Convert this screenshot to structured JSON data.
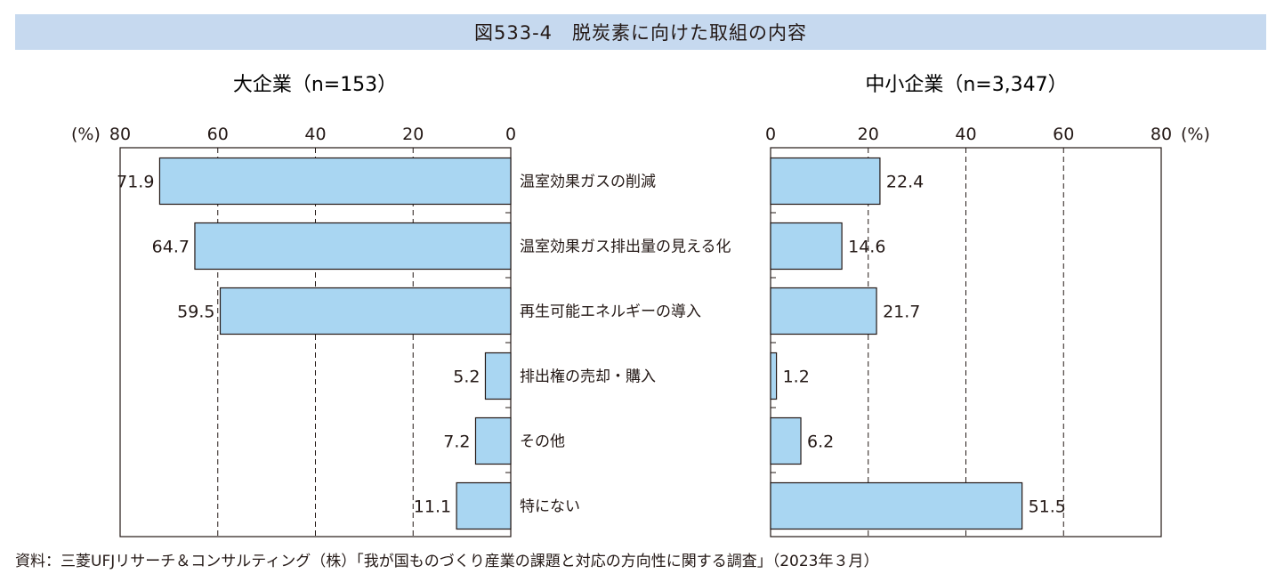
{
  "figure": {
    "title": "図533-4　脱炭素に向けた取組の内容",
    "source": "資料：三菱UFJリサーチ＆コンサルティング（株）「我が国ものづくり産業の課題と対応の方向性に関する調査」（2023年３月）",
    "bar_color": "#a9d6f2"
  },
  "chart_data": [
    {
      "type": "bar",
      "orientation": "horizontal",
      "direction": "right-to-left",
      "title": "大企業（n=153）",
      "categories": [
        "温室効果ガスの削減",
        "温室効果ガス排出量の見える化",
        "再生可能エネルギーの導入",
        "排出権の売却・購入",
        "その他",
        "特にない"
      ],
      "values": [
        71.9,
        64.7,
        59.5,
        5.2,
        7.2,
        11.1
      ],
      "value_labels": [
        "71.9",
        "64.7",
        "59.5",
        "5.2",
        "7.2",
        "11.1"
      ],
      "xlim": [
        0,
        80
      ],
      "ticks": [
        80,
        60,
        40,
        20,
        0
      ],
      "unit": "(%)",
      "grid": true
    },
    {
      "type": "bar",
      "orientation": "horizontal",
      "direction": "left-to-right",
      "title": "中小企業（n=3,347）",
      "categories": [
        "温室効果ガスの削減",
        "温室効果ガス排出量の見える化",
        "再生可能エネルギーの導入",
        "排出権の売却・購入",
        "その他",
        "特にない"
      ],
      "values": [
        22.4,
        14.6,
        21.7,
        1.2,
        6.2,
        51.5
      ],
      "value_labels": [
        "22.4",
        "14.6",
        "21.7",
        "1.2",
        "6.2",
        "51.5"
      ],
      "xlim": [
        0,
        80
      ],
      "ticks": [
        0,
        20,
        40,
        60,
        80
      ],
      "unit": "(%)",
      "grid": true
    }
  ]
}
